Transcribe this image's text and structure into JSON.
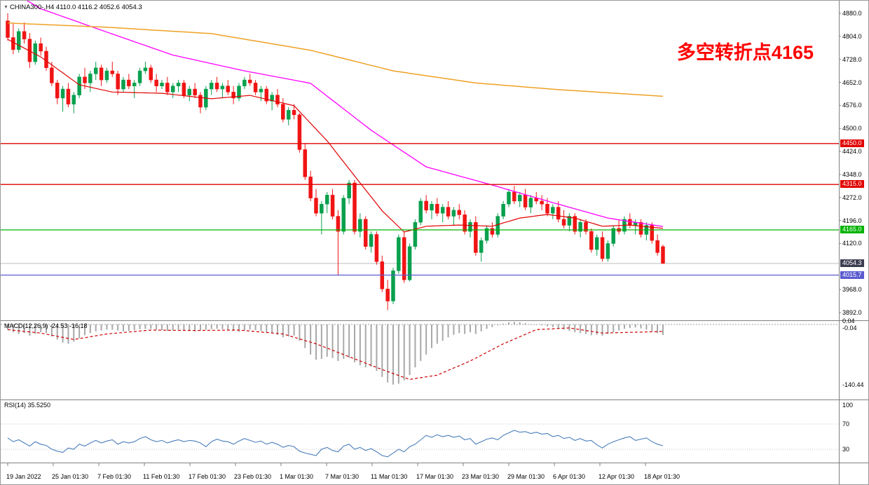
{
  "window": {
    "symbol_bar": "CHINA300-,H4  4110.0 4116.2 4052.6 4054.3"
  },
  "annotation": {
    "text": "多空转折点4165",
    "color": "#ff0000"
  },
  "palette": {
    "up": "#0aa04e",
    "down": "#f01414",
    "ma_fast": "#e00000",
    "ma_mid": "#ff00ff",
    "ma_slow": "#eea125",
    "level_red": "#e10000",
    "level_green": "#00b300",
    "level_blue": "#5b5bcf",
    "current_line": "#bdbdbd",
    "current_badge": "#3d3d52",
    "macd_bar": "#a8a8a8",
    "macd_signal": "#cc0000",
    "rsi_line": "#4a7ebb",
    "grid": "#c4c4c4",
    "separator": "#808080",
    "text": "#000000"
  },
  "price_axis_ticks": [
    4880.0,
    4804.0,
    4728.0,
    4652.0,
    4576.0,
    4500.0,
    4424.0,
    4348.0,
    4272.0,
    4196.0,
    4120.0,
    3968.0,
    3892.0
  ],
  "levels": [
    {
      "label": "4450.0",
      "price": 4450.0,
      "color": "#e10000"
    },
    {
      "label": "4315.0",
      "price": 4315.0,
      "color": "#e10000"
    },
    {
      "label": "4165.0",
      "price": 4165.0,
      "color": "#00b300"
    },
    {
      "label": "4015.7",
      "price": 4015.7,
      "color": "#5b5bcf"
    }
  ],
  "current_price": {
    "label": "4054.3",
    "price": 4054.3
  },
  "time_axis_labels": [
    "19 Jan 2022",
    "25 Jan 01:30",
    "7 Feb 01:30",
    "11 Feb 01:30",
    "17 Feb 01:30",
    "23 Feb 01:30",
    "1 Mar 01:30",
    "7 Mar 01:30",
    "11 Mar 01:30",
    "17 Mar 01:30",
    "23 Mar 01:30",
    "29 Mar 01:30",
    "6 Apr 01:30",
    "12 Apr 01:30",
    "18 Apr 01:30"
  ],
  "chart_data": {
    "type": "candlestick",
    "title": "CHINA300-,H4",
    "timeframe": "H4",
    "ohlc_display": {
      "open": 4110.0,
      "high": 4116.2,
      "low": 4052.6,
      "close": 4054.3
    },
    "ylim": [
      3869,
      4922
    ],
    "y_ticks": [
      4880.0,
      4804.0,
      4728.0,
      4652.0,
      4576.0,
      4500.0,
      4424.0,
      4348.0,
      4272.0,
      4196.0,
      4120.0,
      3968.0,
      3892.0
    ],
    "x_labels": [
      "19 Jan 2022",
      "25 Jan 01:30",
      "7 Feb 01:30",
      "11 Feb 01:30",
      "17 Feb 01:30",
      "23 Feb 01:30",
      "1 Mar 01:30",
      "7 Mar 01:30",
      "11 Mar 01:30",
      "17 Mar 01:30",
      "23 Mar 01:30",
      "29 Mar 01:30",
      "6 Apr 01:30",
      "12 Apr 01:30",
      "18 Apr 01:30"
    ],
    "horizontal_levels": [
      4450.0,
      4315.0,
      4165.0,
      4015.7
    ],
    "candles": [
      [
        4855,
        4880,
        4790,
        4800
      ],
      [
        4800,
        4845,
        4745,
        4760
      ],
      [
        4760,
        4830,
        4750,
        4820
      ],
      [
        4820,
        4850,
        4780,
        4795
      ],
      [
        4795,
        4815,
        4700,
        4720
      ],
      [
        4720,
        4790,
        4710,
        4780
      ],
      [
        4780,
        4800,
        4740,
        4755
      ],
      [
        4755,
        4770,
        4690,
        4700
      ],
      [
        4700,
        4720,
        4640,
        4650
      ],
      [
        4650,
        4660,
        4580,
        4600
      ],
      [
        4600,
        4640,
        4555,
        4630
      ],
      [
        4630,
        4650,
        4570,
        4580
      ],
      [
        4580,
        4620,
        4550,
        4610
      ],
      [
        4610,
        4680,
        4600,
        4670
      ],
      [
        4670,
        4700,
        4630,
        4650
      ],
      [
        4650,
        4690,
        4620,
        4680
      ],
      [
        4680,
        4720,
        4660,
        4700
      ],
      [
        4700,
        4710,
        4640,
        4660
      ],
      [
        4660,
        4700,
        4650,
        4690
      ],
      [
        4690,
        4720,
        4670,
        4680
      ],
      [
        4680,
        4690,
        4610,
        4630
      ],
      [
        4630,
        4670,
        4620,
        4660
      ],
      [
        4660,
        4680,
        4630,
        4640
      ],
      [
        4640,
        4660,
        4600,
        4650
      ],
      [
        4650,
        4700,
        4640,
        4690
      ],
      [
        4690,
        4720,
        4680,
        4700
      ],
      [
        4700,
        4710,
        4650,
        4660
      ],
      [
        4660,
        4680,
        4620,
        4640
      ],
      [
        4640,
        4660,
        4630,
        4650
      ],
      [
        4650,
        4670,
        4610,
        4620
      ],
      [
        4620,
        4650,
        4600,
        4640
      ],
      [
        4640,
        4660,
        4620,
        4650
      ],
      [
        4650,
        4660,
        4600,
        4610
      ],
      [
        4610,
        4640,
        4590,
        4630
      ],
      [
        4630,
        4650,
        4600,
        4610
      ],
      [
        4610,
        4620,
        4550,
        4570
      ],
      [
        4570,
        4640,
        4560,
        4630
      ],
      [
        4630,
        4660,
        4610,
        4650
      ],
      [
        4650,
        4670,
        4620,
        4630
      ],
      [
        4630,
        4650,
        4600,
        4640
      ],
      [
        4640,
        4660,
        4610,
        4620
      ],
      [
        4620,
        4640,
        4580,
        4600
      ],
      [
        4600,
        4650,
        4590,
        4640
      ],
      [
        4640,
        4670,
        4630,
        4660
      ],
      [
        4660,
        4680,
        4640,
        4650
      ],
      [
        4650,
        4660,
        4610,
        4620
      ],
      [
        4620,
        4640,
        4590,
        4630
      ],
      [
        4630,
        4640,
        4580,
        4590
      ],
      [
        4590,
        4620,
        4560,
        4610
      ],
      [
        4610,
        4630,
        4570,
        4580
      ],
      [
        4580,
        4600,
        4520,
        4530
      ],
      [
        4530,
        4570,
        4510,
        4560
      ],
      [
        4560,
        4580,
        4530,
        4545
      ],
      [
        4545,
        4550,
        4420,
        4430
      ],
      [
        4430,
        4450,
        4330,
        4340
      ],
      [
        4340,
        4360,
        4260,
        4270
      ],
      [
        4270,
        4300,
        4210,
        4220
      ],
      [
        4220,
        4260,
        4150,
        4250
      ],
      [
        4250,
        4290,
        4220,
        4280
      ],
      [
        4280,
        4300,
        4200,
        4210
      ],
      [
        4210,
        4230,
        4015,
        4160
      ],
      [
        4160,
        4280,
        4150,
        4270
      ],
      [
        4270,
        4330,
        4250,
        4320
      ],
      [
        4320,
        4330,
        4150,
        4160
      ],
      [
        4160,
        4220,
        4140,
        4200
      ],
      [
        4200,
        4210,
        4100,
        4110
      ],
      [
        4110,
        4160,
        4090,
        4150
      ],
      [
        4150,
        4160,
        4050,
        4060
      ],
      [
        4060,
        4080,
        3960,
        3970
      ],
      [
        3970,
        4000,
        3900,
        3930
      ],
      [
        3930,
        4040,
        3920,
        4030
      ],
      [
        4030,
        4150,
        4020,
        4140
      ],
      [
        4140,
        4160,
        3990,
        4000
      ],
      [
        4000,
        4120,
        3995,
        4110
      ],
      [
        4110,
        4200,
        4100,
        4190
      ],
      [
        4190,
        4270,
        4180,
        4260
      ],
      [
        4260,
        4280,
        4220,
        4230
      ],
      [
        4230,
        4260,
        4200,
        4250
      ],
      [
        4250,
        4270,
        4210,
        4220
      ],
      [
        4220,
        4250,
        4190,
        4240
      ],
      [
        4240,
        4260,
        4200,
        4210
      ],
      [
        4210,
        4240,
        4180,
        4230
      ],
      [
        4230,
        4250,
        4200,
        4215
      ],
      [
        4215,
        4230,
        4150,
        4160
      ],
      [
        4160,
        4200,
        4140,
        4190
      ],
      [
        4190,
        4210,
        4080,
        4090
      ],
      [
        4090,
        4140,
        4060,
        4130
      ],
      [
        4130,
        4180,
        4120,
        4170
      ],
      [
        4170,
        4190,
        4140,
        4150
      ],
      [
        4150,
        4220,
        4140,
        4210
      ],
      [
        4210,
        4260,
        4200,
        4250
      ],
      [
        4250,
        4300,
        4240,
        4290
      ],
      [
        4290,
        4310,
        4250,
        4260
      ],
      [
        4260,
        4290,
        4240,
        4280
      ],
      [
        4280,
        4300,
        4230,
        4240
      ],
      [
        4240,
        4280,
        4220,
        4270
      ],
      [
        4270,
        4290,
        4250,
        4260
      ],
      [
        4260,
        4280,
        4230,
        4250
      ],
      [
        4250,
        4270,
        4210,
        4220
      ],
      [
        4220,
        4250,
        4200,
        4240
      ],
      [
        4240,
        4260,
        4190,
        4200
      ],
      [
        4200,
        4230,
        4170,
        4180
      ],
      [
        4180,
        4220,
        4160,
        4210
      ],
      [
        4210,
        4220,
        4150,
        4160
      ],
      [
        4160,
        4200,
        4140,
        4190
      ],
      [
        4190,
        4200,
        4150,
        4160
      ],
      [
        4160,
        4170,
        4090,
        4100
      ],
      [
        4100,
        4150,
        4080,
        4140
      ],
      [
        4140,
        4160,
        4060,
        4070
      ],
      [
        4070,
        4130,
        4060,
        4120
      ],
      [
        4120,
        4180,
        4110,
        4170
      ],
      [
        4170,
        4200,
        4150,
        4160
      ],
      [
        4160,
        4210,
        4150,
        4200
      ],
      [
        4200,
        4220,
        4170,
        4180
      ],
      [
        4180,
        4200,
        4150,
        4190
      ],
      [
        4190,
        4200,
        4140,
        4150
      ],
      [
        4150,
        4190,
        4130,
        4180
      ],
      [
        4180,
        4190,
        4120,
        4130
      ],
      [
        4130,
        4150,
        4080,
        4090
      ],
      [
        4110,
        4116.2,
        4052.6,
        4054.3
      ]
    ],
    "moving_averages": [
      {
        "name": "ma-fast-red",
        "color": "#e00000",
        "width": 1.2,
        "anchors": [
          [
            0,
            4794
          ],
          [
            6,
            4736
          ],
          [
            13,
            4644
          ],
          [
            19,
            4620
          ],
          [
            28,
            4616
          ],
          [
            37,
            4598
          ],
          [
            44,
            4609
          ],
          [
            52,
            4575
          ],
          [
            58,
            4459
          ],
          [
            64,
            4320
          ],
          [
            68,
            4228
          ],
          [
            72,
            4158
          ],
          [
            76,
            4177
          ],
          [
            82,
            4181
          ],
          [
            88,
            4177
          ],
          [
            93,
            4204
          ],
          [
            98,
            4216
          ],
          [
            103,
            4204
          ],
          [
            108,
            4177
          ],
          [
            113,
            4181
          ],
          [
            119,
            4170
          ]
        ]
      },
      {
        "name": "ma-mid-magenta",
        "color": "#ff00ff",
        "width": 1.3,
        "anchors": [
          [
            0,
            4960
          ],
          [
            6,
            4895
          ],
          [
            18,
            4818
          ],
          [
            30,
            4742
          ],
          [
            43,
            4690
          ],
          [
            55,
            4649
          ],
          [
            66,
            4494
          ],
          [
            76,
            4373
          ],
          [
            88,
            4313
          ],
          [
            99,
            4255
          ],
          [
            109,
            4204
          ],
          [
            119,
            4176
          ]
        ]
      },
      {
        "name": "ma-slow-orange",
        "color": "#eea125",
        "width": 1.5,
        "anchors": [
          [
            0,
            4848
          ],
          [
            18,
            4834
          ],
          [
            37,
            4813
          ],
          [
            55,
            4758
          ],
          [
            70,
            4690
          ],
          [
            85,
            4650
          ],
          [
            100,
            4628
          ],
          [
            119,
            4606
          ]
        ]
      }
    ],
    "macd": {
      "label": "MACD(12,26,9) -24.53 -16.18",
      "params": "12,26,9",
      "value": -24.53,
      "signal_value": -16.18,
      "axis_labels": [
        "0.04",
        "-0.04",
        "-140.44"
      ],
      "histogram": [
        -12,
        -18,
        -22,
        -20,
        -26,
        -22,
        -18,
        -20,
        -28,
        -35,
        -42,
        -45,
        -40,
        -32,
        -25,
        -20,
        -16,
        -14,
        -12,
        -12,
        -14,
        -16,
        -15,
        -13,
        -11,
        -10,
        -10,
        -12,
        -13,
        -15,
        -14,
        -12,
        -13,
        -15,
        -16,
        -14,
        -12,
        -11,
        -10,
        -11,
        -13,
        -15,
        -17,
        -14,
        -12,
        -13,
        -15,
        -18,
        -20,
        -24,
        -30,
        -28,
        -26,
        -38,
        -55,
        -70,
        -82,
        -80,
        -75,
        -78,
        -85,
        -80,
        -78,
        -88,
        -95,
        -100,
        -98,
        -108,
        -122,
        -135,
        -140,
        -138,
        -130,
        -118,
        -100,
        -85,
        -70,
        -55,
        -45,
        -38,
        -30,
        -24,
        -20,
        -22,
        -18,
        -22,
        -16,
        -10,
        -6,
        -2,
        2,
        5,
        6,
        5,
        3,
        1,
        -1,
        -2,
        -4,
        -6,
        -9,
        -12,
        -15,
        -18,
        -20,
        -22,
        -25,
        -24,
        -26,
        -22,
        -18,
        -14,
        -10,
        -8,
        -7,
        -9,
        -12,
        -15,
        -20,
        -24.5
      ],
      "signal_anchors": [
        [
          0,
          -12
        ],
        [
          6,
          -20
        ],
        [
          12,
          -35
        ],
        [
          18,
          -22
        ],
        [
          26,
          -13
        ],
        [
          34,
          -14
        ],
        [
          42,
          -13
        ],
        [
          50,
          -22
        ],
        [
          56,
          -45
        ],
        [
          62,
          -75
        ],
        [
          68,
          -105
        ],
        [
          73,
          -128
        ],
        [
          78,
          -118
        ],
        [
          84,
          -85
        ],
        [
          90,
          -45
        ],
        [
          96,
          -12
        ],
        [
          102,
          -8
        ],
        [
          108,
          -20
        ],
        [
          114,
          -18
        ],
        [
          119,
          -16.2
        ]
      ]
    },
    "rsi": {
      "label": "RSI(14) 35.5250",
      "period": 14,
      "value": 35.525,
      "axis_labels": [
        "100",
        "70",
        "30"
      ],
      "levels": [
        100,
        70,
        30
      ],
      "values": [
        48,
        42,
        45,
        40,
        35,
        42,
        38,
        36,
        30,
        27,
        25,
        32,
        30,
        38,
        35,
        40,
        44,
        40,
        43,
        45,
        38,
        42,
        40,
        42,
        47,
        50,
        45,
        42,
        44,
        40,
        43,
        45,
        42,
        44,
        43,
        40,
        34,
        42,
        46,
        43,
        42,
        38,
        43,
        47,
        44,
        41,
        43,
        38,
        41,
        38,
        33,
        36,
        34,
        27,
        24,
        22,
        20,
        30,
        33,
        28,
        26,
        35,
        38,
        30,
        33,
        28,
        31,
        26,
        20,
        18,
        24,
        30,
        26,
        34,
        38,
        45,
        52,
        49,
        53,
        50,
        52,
        49,
        51,
        45,
        47,
        38,
        42,
        46,
        48,
        45,
        52,
        56,
        60,
        57,
        58,
        55,
        57,
        54,
        55,
        50,
        52,
        47,
        49,
        44,
        47,
        43,
        44,
        37,
        32,
        38,
        42,
        45,
        48,
        50,
        44,
        46,
        48,
        42,
        38,
        35.5
      ]
    }
  }
}
